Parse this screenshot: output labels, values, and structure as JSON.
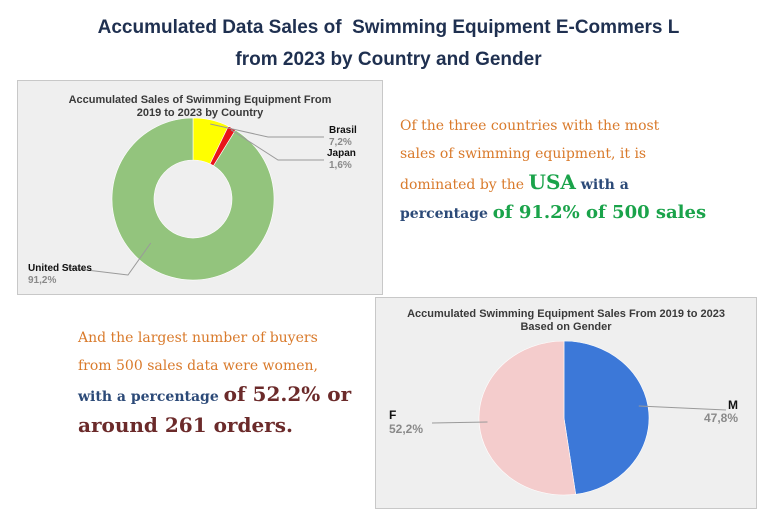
{
  "page": {
    "title_line1": "Accumulated Data Sales of  Swimming Equipment E-Commers L",
    "title_line2": "from 2023 by Country and Gender"
  },
  "narrative_country": {
    "line1": "Of the three countries with the most",
    "line2": "sales of swimming equipment, it is",
    "line3_pre": "dominated by the ",
    "line3_highlight": "USA",
    "line3_post": " with a",
    "line4_pre": "percentage ",
    "line4_highlight": "of 91.2% of 500 sales"
  },
  "narrative_gender": {
    "line1": "And the largest number of buyers",
    "line2": "from 500 sales data were women,",
    "line3_pre": "with a percentage ",
    "line3_highlight": "of 52.2% or",
    "line4": "around 261 orders."
  },
  "chart_data": [
    {
      "type": "pie",
      "variant": "donut",
      "title_line1": "Accumulated Sales of Swimming Equipment From",
      "title_line2": "2019 to 2023 by Country",
      "start_angle_deg": 0,
      "slices": [
        {
          "label": "Brasil",
          "value": 7.2,
          "display": "7,2%",
          "color": "#ffff00"
        },
        {
          "label": "Japan",
          "value": 1.6,
          "display": "1,6%",
          "color": "#e8141a"
        },
        {
          "label": "United States",
          "value": 91.2,
          "display": "91,2%",
          "color": "#93c47d"
        }
      ]
    },
    {
      "type": "pie",
      "title_line1": "Accumulated Swimming Equipment Sales From 2019 to 2023",
      "title_line2": "Based on Gender",
      "start_angle_deg": 0,
      "slices": [
        {
          "label": "M",
          "value": 47.8,
          "display": "47,8%",
          "color": "#3c78d8"
        },
        {
          "label": "F",
          "value": 52.2,
          "display": "52,2%",
          "color": "#f4cccc"
        }
      ]
    }
  ]
}
